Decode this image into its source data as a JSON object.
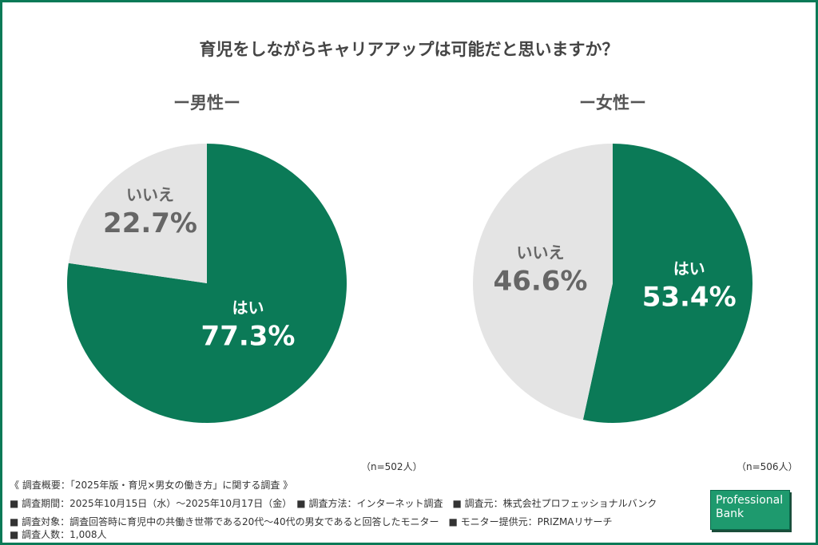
{
  "title": "育児をしながらキャリアアップは可能だと思いますか？",
  "colors": {
    "yes": "#0b7a57",
    "no": "#e4e4e4",
    "frame": "#0b7a57"
  },
  "chart_data": [
    {
      "type": "pie",
      "subtitle": "ー男性ー",
      "n_label": "（n=502人）",
      "slices": [
        {
          "label": "はい",
          "value": 77.3,
          "value_label": "77.3%"
        },
        {
          "label": "いいえ",
          "value": 22.7,
          "value_label": "22.7%"
        }
      ]
    },
    {
      "type": "pie",
      "subtitle": "ー女性ー",
      "n_label": "（n=506人）",
      "slices": [
        {
          "label": "はい",
          "value": 53.4,
          "value_label": "53.4%"
        },
        {
          "label": "いいえ",
          "value": 46.6,
          "value_label": "46.6%"
        }
      ]
    }
  ],
  "footer": {
    "line1": "《 調査概要：「2025年版・育児×男女の働き方」に関する調査 》",
    "line2": "■ 調査期間：2025年10月15日（水）～2025年10月17日（金）　■ 調査方法：インターネット調査　■ 調査元：株式会社プロフェッショナルバンク",
    "line3": "■ 調査対象：調査回答時に育児中の共働き世帯である20代～40代の男女であると回答したモニター　■ モニター提供元：PRIZMAリサーチ",
    "line4": "■ 調査人数：1,008人"
  },
  "logo": {
    "line1": "Professional",
    "line2": "Bank"
  }
}
